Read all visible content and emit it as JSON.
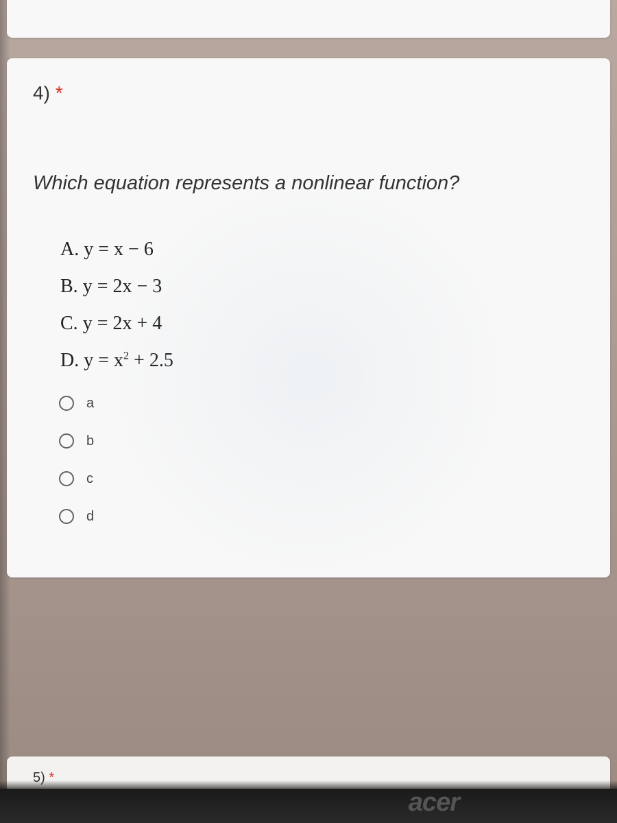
{
  "question": {
    "number": "4)",
    "required_mark": "*",
    "text_prefix": "Which equation represents a ",
    "text_emphasis": "nonlinear",
    "text_suffix": " function?",
    "choices": [
      {
        "letter": "A.",
        "equation": "y = x − 6"
      },
      {
        "letter": "B.",
        "equation": "y = 2x − 3"
      },
      {
        "letter": "C.",
        "equation": "y = 2x + 4"
      },
      {
        "letter": "D.",
        "equation_html": "y = x² + 2.5",
        "equation_base": "y = x",
        "equation_exp": "2",
        "equation_tail": " + 2.5"
      }
    ],
    "radio_options": [
      {
        "value": "a",
        "label": "a"
      },
      {
        "value": "b",
        "label": "b"
      },
      {
        "value": "c",
        "label": "c"
      },
      {
        "value": "d",
        "label": "d"
      }
    ]
  },
  "next_question": {
    "number": "5)",
    "required_mark": "*"
  },
  "branding": {
    "laptop": "acer"
  },
  "styling": {
    "card_bg": "#f8f8f8",
    "page_bg_top": "#b8a8a0",
    "page_bg_bottom": "#9a8a82",
    "asterisk_color": "#d93025",
    "text_color": "#333",
    "radio_border": "#5f6368",
    "question_fontsize": 29,
    "choice_fontsize": 28,
    "radio_label_fontsize": 20
  }
}
